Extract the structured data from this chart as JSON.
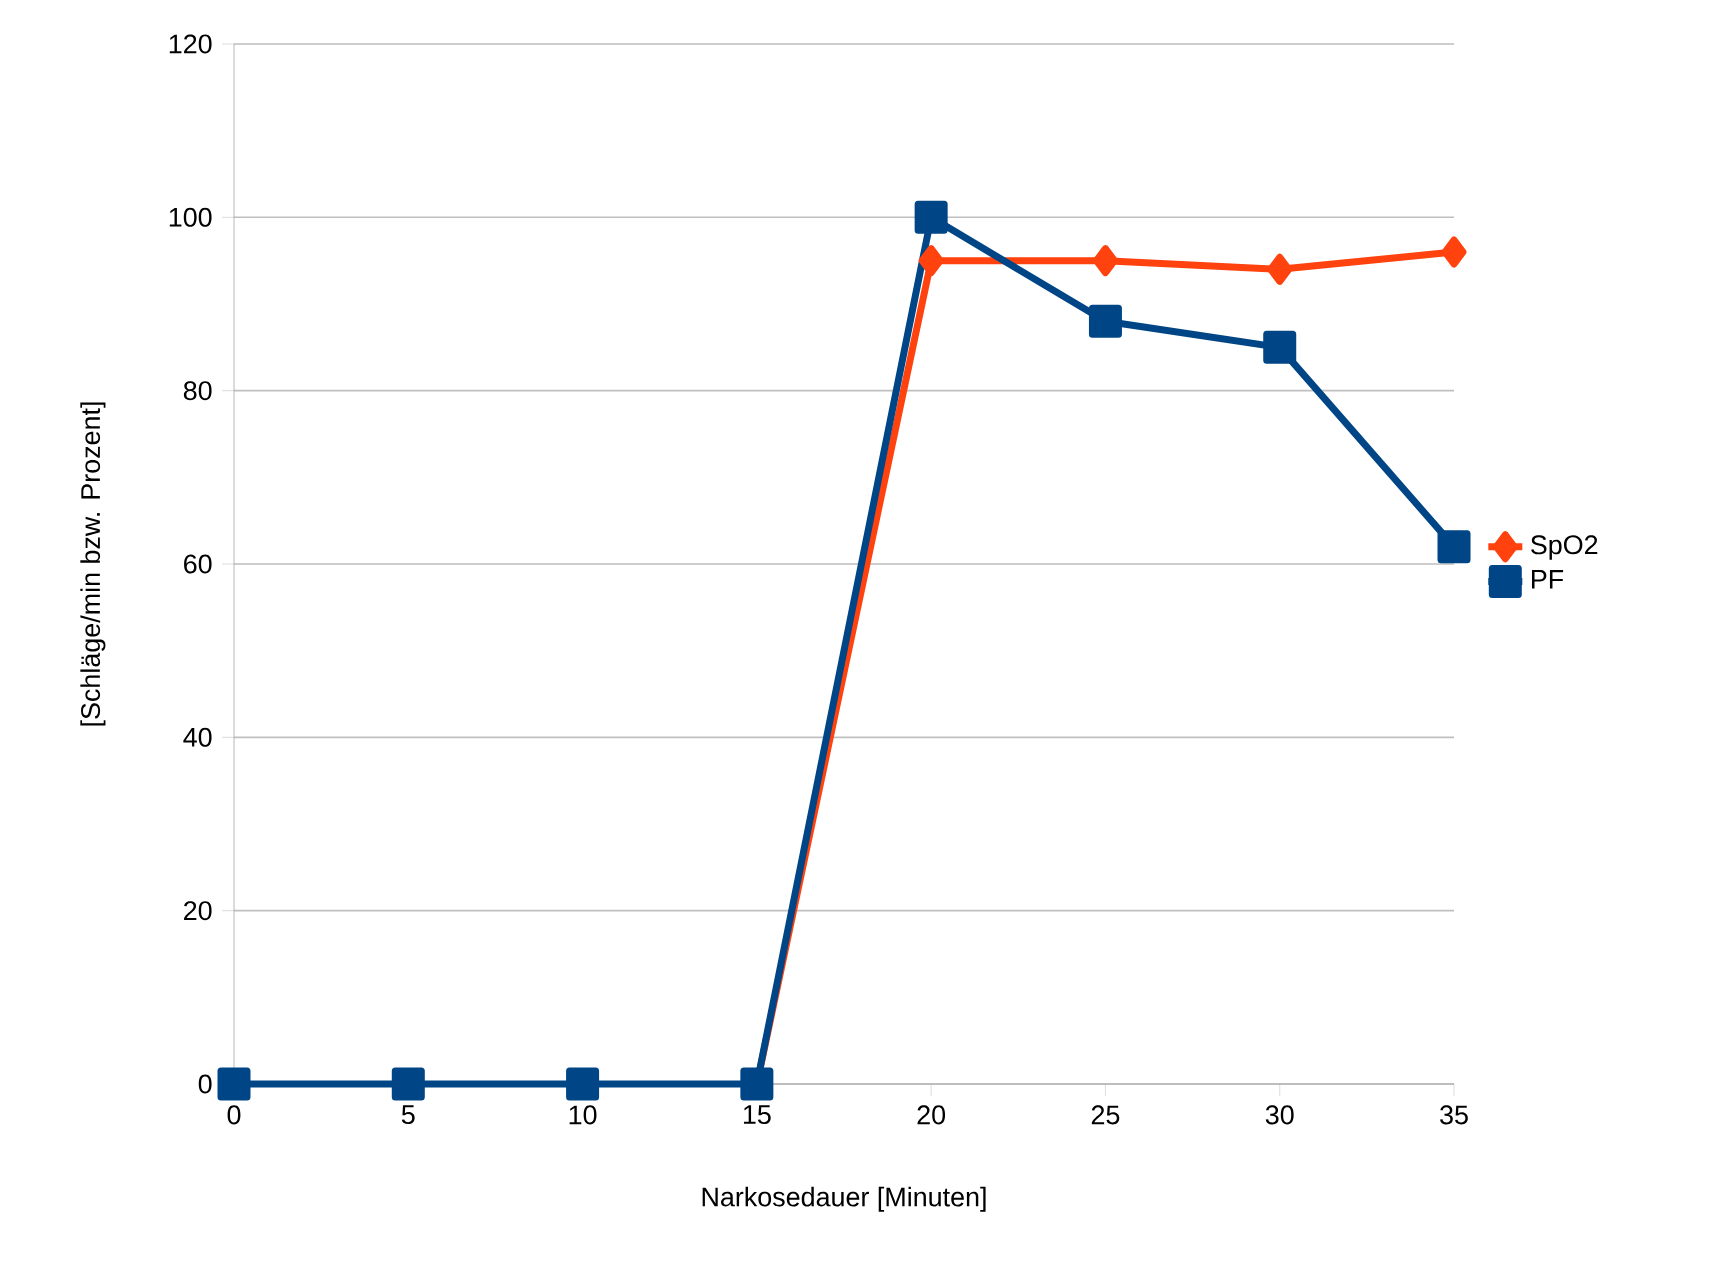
{
  "chart_data": {
    "type": "line",
    "xlabel": "Narkosedauer [Minuten]",
    "ylabel": "[Schläge/min bzw. Prozent]",
    "x": [
      0,
      5,
      10,
      15,
      20,
      25,
      30,
      35
    ],
    "series": [
      {
        "name": "SpO2",
        "color": "#ff420e",
        "marker": "diamond",
        "values": [
          null,
          null,
          null,
          0,
          95,
          95,
          94,
          96
        ]
      },
      {
        "name": "PF",
        "color": "#004586",
        "marker": "square",
        "values": [
          0,
          0,
          0,
          0,
          100,
          88,
          85,
          62
        ]
      }
    ],
    "xlim": [
      0,
      35
    ],
    "xticks": [
      0,
      5,
      10,
      15,
      20,
      25,
      30,
      35
    ],
    "ylim": [
      0,
      120
    ],
    "yticks": [
      0,
      20,
      40,
      60,
      80,
      100,
      120
    ],
    "grid": "y",
    "legend": "right",
    "line_style": "solid"
  }
}
